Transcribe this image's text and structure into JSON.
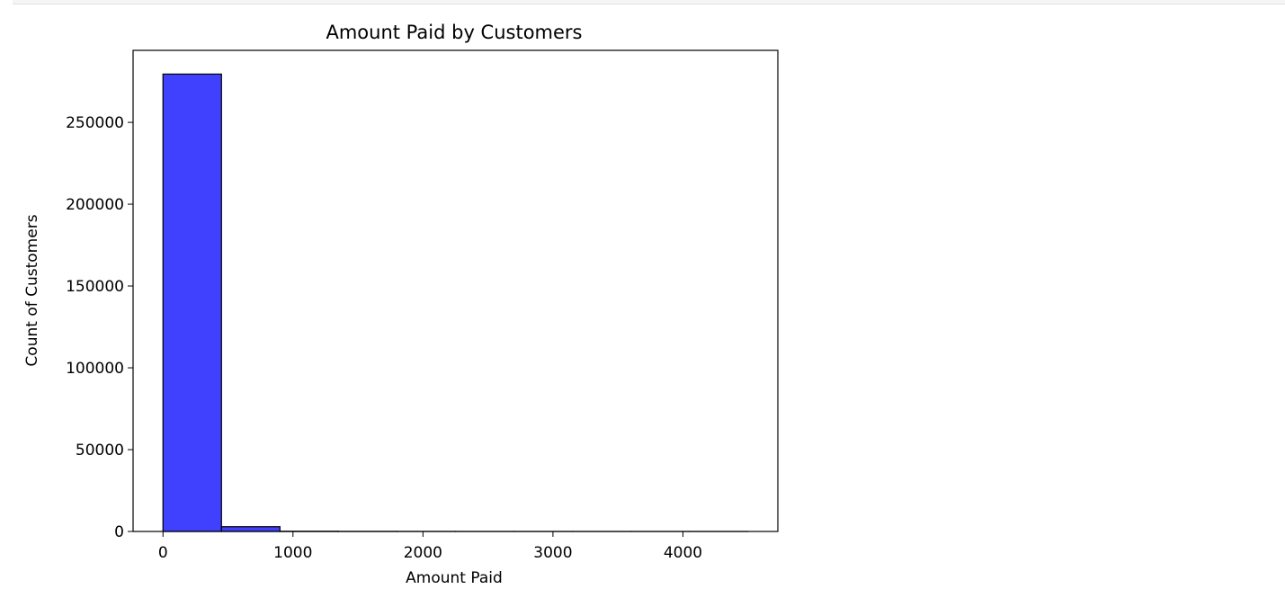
{
  "chart_data": {
    "type": "bar",
    "title": "Amount Paid by Customers",
    "xlabel": "Amount Paid",
    "ylabel": "Count of Customers",
    "bin_edges": [
      0,
      450,
      900,
      1350,
      1800,
      2250,
      2700,
      3150,
      3600,
      4050,
      4500
    ],
    "values": [
      279500,
      2900,
      150,
      60,
      30,
      15,
      8,
      5,
      3,
      2
    ],
    "xlim": [
      -230,
      4730
    ],
    "ylim": [
      0,
      294000
    ],
    "xticks": [
      0,
      1000,
      2000,
      3000,
      4000
    ],
    "yticks": [
      0,
      50000,
      100000,
      150000,
      200000,
      250000
    ],
    "bar_color": "#4040ff",
    "edge_color": "#000000",
    "grid": false
  }
}
